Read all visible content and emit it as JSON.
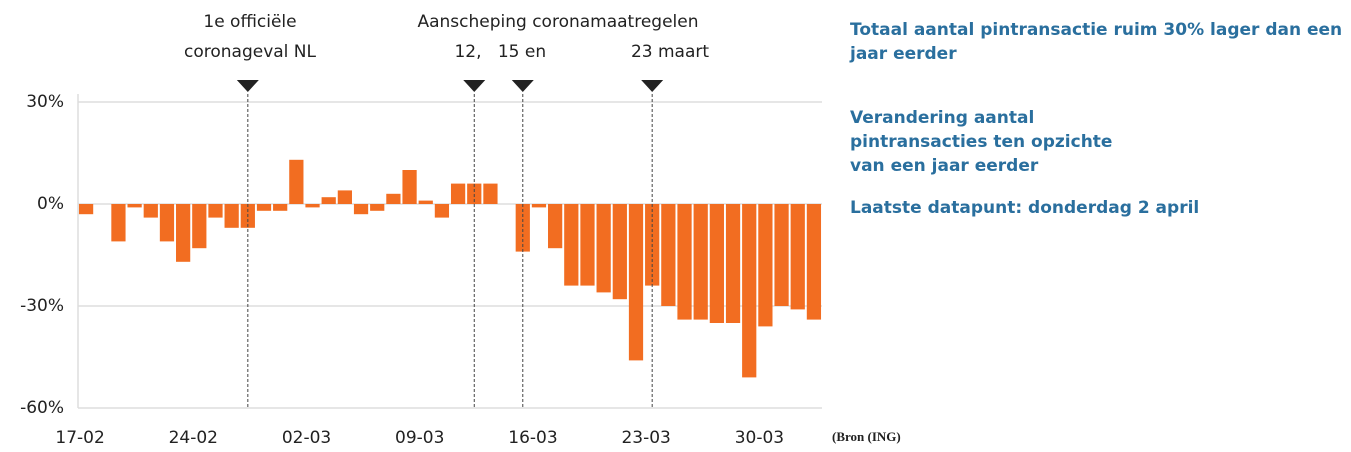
{
  "chart_data": {
    "type": "bar",
    "annotations": [
      "1e officiële",
      "coronageval NL",
      "Aanscheping coronamaatregelen",
      "12,",
      "15 en",
      "23 maart"
    ],
    "side_texts": [
      "Totaal aantal pintransactie ruim 30% lager dan een jaar eerder",
      "Verandering aantal pintransacties ten opzichte van een jaar eerder",
      "Laatste datapunt: donderdag 2 april"
    ],
    "source": "(Bron (ING)",
    "categories": [
      "17-02",
      null,
      null,
      null,
      null,
      null,
      null,
      "24-02",
      null,
      null,
      null,
      null,
      null,
      null,
      "02-03",
      null,
      null,
      null,
      null,
      null,
      null,
      "09-03",
      null,
      null,
      null,
      null,
      null,
      null,
      "16-03",
      null,
      null,
      null,
      null,
      null,
      null,
      "23-03",
      null,
      null,
      null,
      null,
      null,
      null,
      "30-03",
      null,
      null,
      null
    ],
    "values": [
      -3,
      0,
      -11,
      -1,
      -4,
      -11,
      -17,
      -13,
      -4,
      -7,
      -7,
      -2,
      -2,
      13,
      -1,
      2,
      4,
      -3,
      -2,
      3,
      10,
      1,
      -4,
      6,
      6,
      6,
      0,
      -14,
      -1,
      -13,
      -24,
      -24,
      -26,
      -28,
      -46,
      -24,
      -30,
      -34,
      -34,
      -35,
      -35,
      -51,
      -36,
      -30,
      -31,
      -34
    ],
    "color": "#f26d21",
    "ylim": [
      -60,
      30
    ],
    "yticks": [
      {
        "value": -60,
        "label": "-60%"
      },
      {
        "value": -30,
        "label": "-30%"
      },
      {
        "value": 0,
        "label": "0%"
      },
      {
        "value": 30,
        "label": "30%"
      }
    ],
    "grid": true
  }
}
